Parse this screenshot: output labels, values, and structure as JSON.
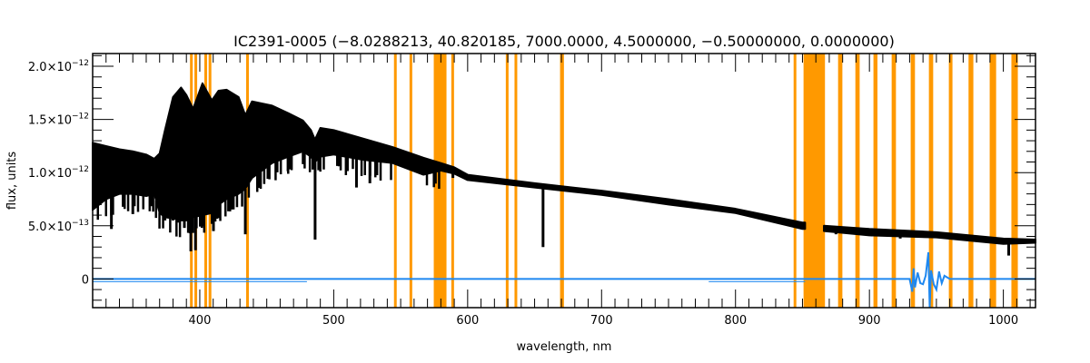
{
  "chart_data": {
    "type": "line",
    "title": "IC2391-0005   (−8.0288213, 40.820185, 7000.0000, 4.5000000, −0.50000000, 0.0000000)",
    "xlabel": "wavelength, nm",
    "ylabel": "flux, units",
    "xlim": [
      320,
      1024
    ],
    "ylim": [
      -2.7e-13,
      2.12e-12
    ],
    "x_ticks": [
      400,
      500,
      600,
      700,
      800,
      900,
      1000
    ],
    "x_tick_labels": [
      "400",
      "500",
      "600",
      "700",
      "800",
      "900",
      "1000"
    ],
    "x_minor_step": 10,
    "y_ticks": [
      0,
      5e-13,
      1e-12,
      1.5e-12,
      2e-12
    ],
    "y_tick_labels": [
      {
        "mantissa": "0",
        "exp": ""
      },
      {
        "mantissa": "5.0×10",
        "exp": "−13"
      },
      {
        "mantissa": "1.0×10",
        "exp": "−12"
      },
      {
        "mantissa": "1.5×10",
        "exp": "−12"
      },
      {
        "mantissa": "2.0×10",
        "exp": "−12"
      }
    ],
    "y_minor_step": 1e-13,
    "grid": false,
    "colors": {
      "spectrum": "#000000",
      "residual": "#1e88f0",
      "mask": "#ff9900",
      "axis": "#000000"
    },
    "flux_unit": 1e-12,
    "series": [
      {
        "name": "spectrum",
        "segments": [
          {
            "wavelength": [
              320,
              330,
              340,
              350,
              360,
              366,
              370,
              374,
              380,
              386,
              390,
              395,
              402,
              409,
              414,
              420,
              429,
              434,
              439,
              454,
              466,
              477,
              483,
              486,
              490,
              500,
              522,
              544,
              567,
              580,
              590,
              600,
              650,
              700,
              750,
              800,
              850,
              852
            ],
            "flux_upper": [
              1.28,
              1.25,
              1.22,
              1.2,
              1.17,
              1.13,
              1.18,
              1.4,
              1.71,
              1.8,
              1.73,
              1.6,
              1.84,
              1.68,
              1.77,
              1.78,
              1.71,
              1.54,
              1.67,
              1.63,
              1.56,
              1.49,
              1.4,
              1.31,
              1.42,
              1.4,
              1.32,
              1.24,
              1.14,
              1.09,
              1.05,
              0.98,
              0.9,
              0.83,
              0.75,
              0.66,
              0.53,
              0.53
            ],
            "flux_lower": [
              0.65,
              0.75,
              0.8,
              0.8,
              0.78,
              0.8,
              0.62,
              0.58,
              0.57,
              0.55,
              0.55,
              0.58,
              0.6,
              0.62,
              0.7,
              0.75,
              0.8,
              0.85,
              0.95,
              1.09,
              1.15,
              1.2,
              1.15,
              1.1,
              1.15,
              1.17,
              1.12,
              1.09,
              0.98,
              1.02,
              0.99,
              0.93,
              0.86,
              0.79,
              0.7,
              0.62,
              0.47,
              0.47
            ]
          },
          {
            "wavelength": [
              866,
              900,
              950,
              1000,
              1024
            ],
            "flux_upper": [
              0.5,
              0.47,
              0.44,
              0.38,
              0.37
            ],
            "flux_lower": [
              0.45,
              0.41,
              0.39,
              0.33,
              0.34
            ]
          }
        ],
        "absorption_lines": [
          [
            334,
            0.47
          ],
          [
            350,
            0.61
          ],
          [
            374,
            0.55
          ],
          [
            380,
            0.55
          ],
          [
            383.5,
            0.53
          ],
          [
            388.5,
            0.48
          ],
          [
            393.3,
            0.26
          ],
          [
            396.8,
            0.27
          ],
          [
            410.2,
            0.45
          ],
          [
            434.0,
            0.42
          ],
          [
            486.1,
            0.37
          ],
          [
            517,
            0.86
          ],
          [
            527,
            0.9
          ],
          [
            589,
            0.95
          ],
          [
            656.3,
            0.3
          ],
          [
            875,
            0.42
          ],
          [
            888,
            0.43
          ],
          [
            902,
            0.4
          ],
          [
            923,
            0.38
          ],
          [
            1004,
            0.22
          ]
        ]
      },
      {
        "name": "residual",
        "wavelength": [
          320,
          852,
          866,
          930,
          932,
          933,
          934,
          936,
          938,
          940,
          942,
          944,
          945,
          946,
          948,
          950,
          952,
          954,
          956,
          960,
          1024
        ],
        "flux": [
          0,
          0,
          0,
          0,
          -0.12,
          0.1,
          -0.08,
          0.06,
          -0.04,
          -0.05,
          0.03,
          0.25,
          -0.27,
          0.08,
          -0.05,
          -0.1,
          0.07,
          -0.04,
          0.03,
          0,
          0
        ]
      }
    ],
    "masked_regions_nm": [
      [
        392.7,
        393.7
      ],
      [
        396,
        397
      ],
      [
        403.4,
        405
      ],
      [
        406.6,
        407.9
      ],
      [
        434.6,
        436.4
      ],
      [
        545,
        546
      ],
      [
        556.6,
        557.8
      ],
      [
        574.7,
        584.2
      ],
      [
        587.8,
        589.8
      ],
      [
        628.5,
        630.5
      ],
      [
        635,
        636.4
      ],
      [
        669,
        671.9
      ],
      [
        843.4,
        845.2
      ],
      [
        850.8,
        866.8
      ],
      [
        876.6,
        879.8
      ],
      [
        889.5,
        892.7
      ],
      [
        903,
        906
      ],
      [
        916.6,
        919.8
      ],
      [
        930.8,
        934
      ],
      [
        944.4,
        947.6
      ],
      [
        959.3,
        962
      ],
      [
        974,
        977.6
      ],
      [
        989.8,
        994.6
      ],
      [
        1006,
        1010.8
      ]
    ]
  }
}
